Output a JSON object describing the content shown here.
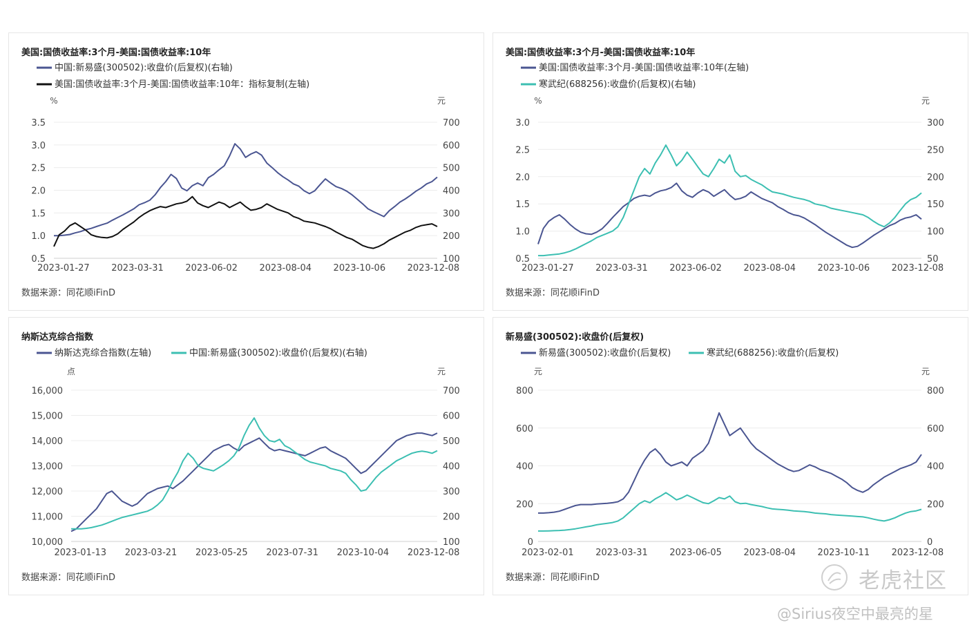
{
  "colors": {
    "navy": "#4a5591",
    "teal": "#3cbfb2",
    "black": "#111111"
  },
  "source_text": "数据来源：同花顺iFinD",
  "watermark": {
    "brand": "老虎社区",
    "user": "@Sirius夜空中最亮的星",
    "icon": "tiger-logo-icon"
  },
  "chart_data": [
    {
      "type": "line",
      "title": "美国:国债收益率:3个月-美国:国债收益率:10年",
      "left_unit": "%",
      "right_unit": "元",
      "left_ticks": [
        "3.5",
        "3.0",
        "2.5",
        "2.0",
        "1.5",
        "1.0",
        "0.5"
      ],
      "right_ticks": [
        "700",
        "600",
        "500",
        "400",
        "300",
        "200",
        "100"
      ],
      "left_range": [
        0.5,
        3.5
      ],
      "right_range": [
        100,
        700
      ],
      "x_ticks": [
        "2023-01-27",
        "2023-03-31",
        "2023-06-02",
        "2023-08-04",
        "2023-10-06",
        "2023-12-08"
      ],
      "series": [
        {
          "name": "中国:新易盛(300502):收盘价(后复权)(右轴)",
          "axis": "right",
          "color": "#4a5591",
          "values": [
            200,
            200,
            202,
            205,
            212,
            218,
            226,
            232,
            240,
            248,
            255,
            268,
            280,
            292,
            305,
            318,
            336,
            345,
            356,
            380,
            412,
            438,
            470,
            452,
            410,
            398,
            420,
            432,
            420,
            455,
            470,
            490,
            508,
            552,
            605,
            582,
            545,
            560,
            570,
            555,
            520,
            500,
            478,
            460,
            445,
            428,
            418,
            398,
            385,
            398,
            425,
            450,
            432,
            416,
            408,
            396,
            380,
            360,
            340,
            318,
            306,
            295,
            284,
            310,
            328,
            348,
            362,
            378,
            396,
            410,
            428,
            438,
            458
          ]
        },
        {
          "name": "美国:国债收益率:3个月-美国:国债收益率:10年：指标复制(左轴)",
          "axis": "left",
          "color": "#111111",
          "values": [
            0.76,
            1.02,
            1.1,
            1.22,
            1.28,
            1.2,
            1.12,
            1.02,
            0.98,
            0.96,
            0.95,
            0.98,
            1.04,
            1.14,
            1.22,
            1.3,
            1.4,
            1.48,
            1.55,
            1.6,
            1.64,
            1.62,
            1.66,
            1.7,
            1.72,
            1.76,
            1.86,
            1.72,
            1.66,
            1.62,
            1.68,
            1.74,
            1.7,
            1.62,
            1.68,
            1.74,
            1.64,
            1.56,
            1.58,
            1.62,
            1.7,
            1.64,
            1.58,
            1.54,
            1.5,
            1.42,
            1.38,
            1.32,
            1.3,
            1.28,
            1.24,
            1.2,
            1.15,
            1.08,
            1.02,
            0.96,
            0.92,
            0.85,
            0.78,
            0.74,
            0.72,
            0.76,
            0.82,
            0.9,
            0.96,
            1.02,
            1.08,
            1.12,
            1.18,
            1.22,
            1.24,
            1.26,
            1.2
          ]
        }
      ]
    },
    {
      "type": "line",
      "title": "美国:国债收益率:3个月-美国:国债收益率:10年",
      "left_unit": "%",
      "right_unit": "元",
      "left_ticks": [
        "3.0",
        "2.5",
        "2.0",
        "1.5",
        "1.0",
        "0.5"
      ],
      "right_ticks": [
        "300",
        "250",
        "200",
        "150",
        "100",
        "50"
      ],
      "left_range": [
        0.5,
        3.0
      ],
      "right_range": [
        50,
        300
      ],
      "x_ticks": [
        "2023-01-27",
        "2023-03-31",
        "2023-06-02",
        "2023-08-04",
        "2023-10-06",
        "2023-12-08"
      ],
      "series": [
        {
          "name": "美国:国债收益率:3个月-美国:国债收益率:10年(左轴)",
          "axis": "left",
          "color": "#4a5591",
          "values": [
            0.76,
            1.05,
            1.18,
            1.25,
            1.3,
            1.22,
            1.12,
            1.04,
            0.98,
            0.95,
            0.94,
            0.98,
            1.04,
            1.14,
            1.25,
            1.35,
            1.45,
            1.52,
            1.6,
            1.64,
            1.66,
            1.64,
            1.7,
            1.74,
            1.76,
            1.8,
            1.88,
            1.74,
            1.66,
            1.62,
            1.7,
            1.76,
            1.72,
            1.64,
            1.7,
            1.76,
            1.66,
            1.58,
            1.6,
            1.64,
            1.72,
            1.66,
            1.6,
            1.56,
            1.52,
            1.45,
            1.4,
            1.34,
            1.3,
            1.28,
            1.24,
            1.18,
            1.12,
            1.05,
            0.98,
            0.92,
            0.86,
            0.8,
            0.74,
            0.7,
            0.72,
            0.78,
            0.85,
            0.92,
            0.98,
            1.04,
            1.1,
            1.14,
            1.2,
            1.24,
            1.26,
            1.3,
            1.22
          ]
        },
        {
          "name": "寒武纪(688256):收盘价(后复权)(右轴)",
          "axis": "right",
          "color": "#3cbfb2",
          "values": [
            55,
            55,
            56,
            57,
            58,
            60,
            63,
            67,
            72,
            77,
            82,
            88,
            92,
            96,
            100,
            108,
            125,
            150,
            175,
            200,
            215,
            205,
            225,
            240,
            258,
            240,
            220,
            230,
            245,
            232,
            218,
            205,
            200,
            215,
            232,
            225,
            240,
            210,
            200,
            202,
            195,
            190,
            185,
            178,
            172,
            170,
            168,
            165,
            162,
            160,
            158,
            155,
            150,
            148,
            146,
            142,
            140,
            138,
            136,
            134,
            132,
            130,
            125,
            118,
            112,
            108,
            115,
            125,
            138,
            150,
            158,
            162,
            170
          ]
        }
      ]
    },
    {
      "type": "line",
      "title": "纳斯达克综合指数",
      "left_unit": "点",
      "right_unit": "元",
      "left_ticks": [
        "16,000",
        "15,000",
        "14,000",
        "13,000",
        "12,000",
        "11,000",
        "10,000"
      ],
      "right_ticks": [
        "700",
        "600",
        "500",
        "400",
        "300",
        "200",
        "100"
      ],
      "left_range": [
        10000,
        16000
      ],
      "right_range": [
        100,
        700
      ],
      "x_ticks": [
        "2023-01-13",
        "2023-03-21",
        "2023-05-25",
        "2023-07-31",
        "2023-10-04",
        "2023-12-08"
      ],
      "series": [
        {
          "name": "纳斯达克综合指数(左轴)",
          "axis": "left",
          "color": "#4a5591",
          "values": [
            10400,
            10500,
            10700,
            10900,
            11100,
            11300,
            11600,
            11900,
            12000,
            11800,
            11600,
            11500,
            11400,
            11500,
            11700,
            11900,
            12000,
            12100,
            12150,
            12200,
            12100,
            12250,
            12400,
            12600,
            12800,
            13000,
            13200,
            13400,
            13600,
            13700,
            13800,
            13850,
            13700,
            13600,
            13800,
            13900,
            14000,
            14100,
            13900,
            13700,
            13600,
            13650,
            13600,
            13550,
            13500,
            13450,
            13400,
            13500,
            13600,
            13700,
            13750,
            13600,
            13500,
            13400,
            13300,
            13100,
            12900,
            12700,
            12800,
            13000,
            13200,
            13400,
            13600,
            13800,
            14000,
            14100,
            14200,
            14250,
            14300,
            14300,
            14250,
            14200,
            14300
          ]
        },
        {
          "name": "中国:新易盛(300502):收盘价(后复权)(右轴)",
          "axis": "right",
          "color": "#3cbfb2",
          "values": [
            150,
            150,
            150,
            152,
            155,
            160,
            165,
            172,
            180,
            188,
            195,
            200,
            205,
            210,
            215,
            220,
            230,
            245,
            265,
            300,
            340,
            375,
            420,
            450,
            430,
            400,
            390,
            385,
            380,
            392,
            405,
            420,
            440,
            470,
            520,
            560,
            590,
            550,
            520,
            500,
            495,
            505,
            480,
            470,
            455,
            440,
            425,
            415,
            410,
            405,
            400,
            390,
            385,
            380,
            370,
            345,
            325,
            300,
            305,
            330,
            355,
            375,
            390,
            405,
            420,
            430,
            440,
            450,
            455,
            458,
            455,
            450,
            460
          ]
        }
      ]
    },
    {
      "type": "line",
      "title": "新易盛(300502):收盘价(后复权)",
      "left_unit": "元",
      "right_unit": "元",
      "left_ticks": [
        "800",
        "600",
        "400",
        "200",
        "0"
      ],
      "right_ticks": [
        "800",
        "600",
        "400",
        "200",
        "0"
      ],
      "left_range": [
        0,
        800
      ],
      "right_range": [
        0,
        800
      ],
      "x_ticks": [
        "2023-02-01",
        "2023-03-31",
        "2023-06-05",
        "2023-08-04",
        "2023-10-11",
        "2023-12-08"
      ],
      "series": [
        {
          "name": "新易盛(300502):收盘价(后复权)",
          "axis": "left",
          "color": "#4a5591",
          "values": [
            150,
            150,
            152,
            155,
            160,
            170,
            180,
            190,
            195,
            195,
            195,
            198,
            200,
            202,
            205,
            210,
            225,
            260,
            320,
            380,
            430,
            470,
            490,
            460,
            420,
            400,
            410,
            420,
            400,
            440,
            460,
            480,
            520,
            600,
            680,
            620,
            560,
            580,
            600,
            560,
            520,
            490,
            470,
            450,
            430,
            410,
            395,
            380,
            370,
            375,
            390,
            405,
            395,
            380,
            370,
            360,
            345,
            330,
            310,
            285,
            270,
            260,
            275,
            300,
            320,
            340,
            355,
            370,
            385,
            395,
            405,
            420,
            460
          ]
        },
        {
          "name": "寒武纪(688256):收盘价(后复权)",
          "axis": "right",
          "color": "#3cbfb2",
          "values": [
            55,
            55,
            56,
            57,
            58,
            60,
            63,
            67,
            72,
            77,
            82,
            88,
            92,
            96,
            100,
            108,
            125,
            150,
            175,
            200,
            215,
            205,
            225,
            240,
            258,
            240,
            220,
            230,
            245,
            232,
            218,
            205,
            200,
            215,
            232,
            225,
            240,
            210,
            200,
            202,
            195,
            190,
            185,
            178,
            172,
            170,
            168,
            165,
            162,
            160,
            158,
            155,
            150,
            148,
            146,
            142,
            140,
            138,
            136,
            134,
            132,
            130,
            125,
            118,
            112,
            108,
            115,
            125,
            138,
            150,
            158,
            162,
            170
          ]
        }
      ]
    }
  ]
}
